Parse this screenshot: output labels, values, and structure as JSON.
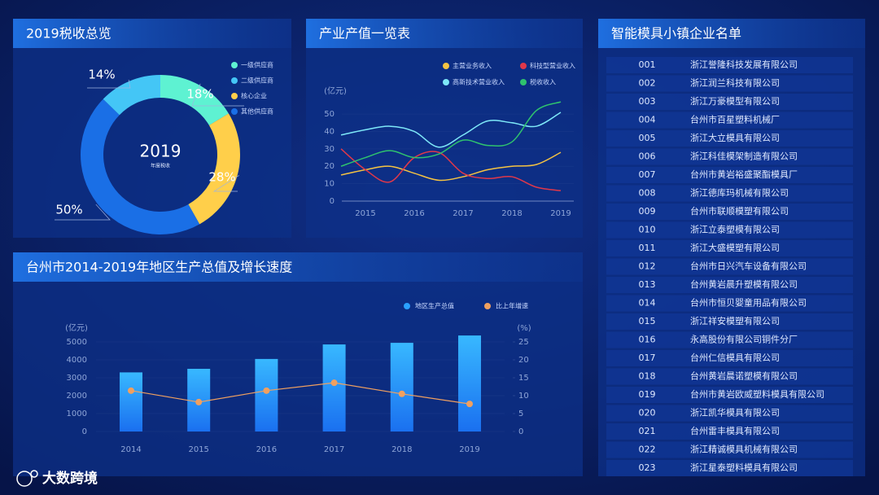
{
  "chart_data": [
    {
      "type": "pie",
      "title": "2019税收总览",
      "center_label": "2019",
      "center_caption": "年度税收",
      "categories": [
        "一级供应商",
        "二级供应商",
        "核心企业",
        "其他供应商"
      ],
      "values": [
        18,
        14,
        28,
        50
      ],
      "value_labels": [
        "18%",
        "14%",
        "28%",
        "50%"
      ],
      "colors": [
        "#5ef2d2",
        "#44c6f6",
        "#ffcf4a",
        "#1a6fe6"
      ]
    },
    {
      "type": "line",
      "title": "产业产值一览表",
      "y_label": "(亿元)",
      "categories": [
        null,
        "2015",
        null,
        "2016",
        null,
        "2017",
        null,
        "2018",
        null,
        "2019"
      ],
      "ylim": [
        0,
        58
      ],
      "yticks": [
        0,
        10,
        20,
        30,
        40,
        50
      ],
      "series": [
        {
          "name": "主营业务收入",
          "color": "#f5c342",
          "values": [
            15,
            18,
            20,
            16,
            12,
            14,
            18,
            20,
            21,
            28
          ]
        },
        {
          "name": "科技型营业收入",
          "color": "#e0384a",
          "values": [
            30,
            18,
            11,
            25,
            28,
            16,
            13,
            14,
            8,
            6
          ]
        },
        {
          "name": "高新技术营业收入",
          "color": "#7ee8f8",
          "values": [
            38,
            41,
            43,
            40,
            31,
            38,
            46,
            45,
            43,
            51
          ]
        },
        {
          "name": "税收收入",
          "color": "#2fc26e",
          "values": [
            20,
            25,
            29,
            25,
            27,
            35,
            32,
            34,
            52,
            57
          ]
        }
      ]
    },
    {
      "type": "combo",
      "title": "台州市2014-2019年地区生产总值及增长速度",
      "y_label": "(亿元)",
      "y2_label": "(%)",
      "categories": [
        "2014",
        "2015",
        "2016",
        "2017",
        "2018",
        "2019"
      ],
      "ylim": [
        0,
        5500
      ],
      "yticks": [
        0,
        1000,
        2000,
        3000,
        4000,
        5000
      ],
      "y2lim": [
        0,
        27.5
      ],
      "y2ticks": [
        0,
        5,
        10,
        15,
        20,
        25
      ],
      "series": [
        {
          "name": "地区生产总值",
          "color": "#2aa0ff",
          "values": [
            3300,
            3500,
            4050,
            4860,
            4950,
            5360
          ]
        },
        {
          "name": "比上年增速",
          "color": "#f0a060",
          "axis": "y2",
          "values": [
            11.4,
            8.2,
            11.4,
            13.6,
            10.5,
            7.7
          ]
        }
      ]
    }
  ],
  "company_list": {
    "title": "智能模具小镇企业名单",
    "rows": [
      [
        "001",
        "浙江誉隆科技发展有限公司"
      ],
      [
        "002",
        "浙江润兰科技有限公司"
      ],
      [
        "003",
        "浙江万豪模型有限公司"
      ],
      [
        "004",
        "台州市百星塑料机械厂"
      ],
      [
        "005",
        "浙江大立模具有限公司"
      ],
      [
        "006",
        "浙江科佳模架制造有限公司"
      ],
      [
        "007",
        "台州市黄岩裕盛聚酯模具厂"
      ],
      [
        "008",
        "浙江德库玛机械有限公司"
      ],
      [
        "009",
        "台州市联顺模塑有限公司"
      ],
      [
        "010",
        "浙江立泰塑模有限公司"
      ],
      [
        "011",
        "浙江大盛模塑有限公司"
      ],
      [
        "012",
        "台州市日兴汽车设备有限公司"
      ],
      [
        "013",
        "台州黄岩晨升塑模有限公司"
      ],
      [
        "014",
        "台州市恒贝婴童用品有限公司"
      ],
      [
        "015",
        "浙江祥安模塑有限公司"
      ],
      [
        "016",
        "永高股份有限公司铜件分厂"
      ],
      [
        "017",
        "台州仁信模具有限公司"
      ],
      [
        "018",
        "台州黄岩晨诺塑模有限公司"
      ],
      [
        "019",
        "台州市黄岩欧威塑料模具有限公司"
      ],
      [
        "020",
        "浙江凯华模具有限公司"
      ],
      [
        "021",
        "台州雷丰模具有限公司"
      ],
      [
        "022",
        "浙江精诚模具机械有限公司"
      ],
      [
        "023",
        "浙江星泰塑料模具有限公司"
      ]
    ]
  },
  "logo": {
    "text": "大数跨境"
  }
}
